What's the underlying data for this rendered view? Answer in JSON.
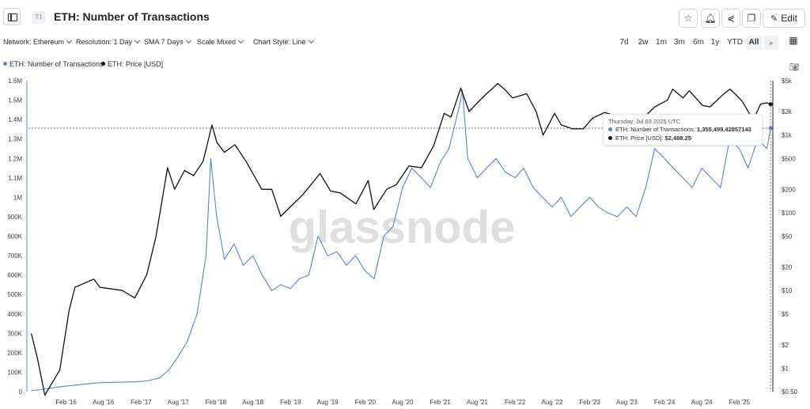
{
  "header": {
    "tier_badge": "T1",
    "title": "ETH: Number of Transactions",
    "edit_label": "Edit"
  },
  "filters": [
    {
      "label": "Network: Ethereum"
    },
    {
      "label": "Resolution: 1 Day"
    },
    {
      "label": "SMA 7 Days"
    },
    {
      "label": "Scale Mixed"
    },
    {
      "label": "Chart Style: Line"
    }
  ],
  "ranges": [
    "7d",
    "2w",
    "1m",
    "3m",
    "6m",
    "1y",
    "YTD",
    "All"
  ],
  "active_range": "All",
  "legend": [
    {
      "label": "ETH: Number of Transactions",
      "color": "#5b7fe0"
    },
    {
      "label": "ETH: Price [USD]",
      "color": "#111111"
    }
  ],
  "watermark": "glassnode",
  "tooltip": {
    "date": "Thursday, Jul 03 2025 UTC",
    "tx_label": "ETH: Number of Transactions:",
    "tx_value": "1,355,499.42857143",
    "price_label": "ETH: Price [USD]:",
    "price_value": "$2,488.25"
  },
  "chart_data": {
    "type": "line",
    "scale": {
      "left": "linear",
      "right": "log"
    },
    "grid": false,
    "legend_position": "top-left",
    "x_ticks": [
      "Feb '16",
      "Aug '16",
      "Feb '17",
      "Aug '17",
      "Feb '18",
      "Aug '18",
      "Feb '19",
      "Aug '19",
      "Feb '20",
      "Aug '20",
      "Feb '21",
      "Aug '21",
      "Feb '22",
      "Aug '22",
      "Feb '23",
      "Aug '23",
      "Feb '24",
      "Aug '24",
      "Feb '25"
    ],
    "y_left_ticks": [
      "0",
      "100K",
      "200K",
      "300K",
      "400K",
      "500K",
      "600K",
      "700K",
      "800K",
      "900K",
      "1M",
      "1.1M",
      "1.2M",
      "1.3M",
      "1.4M",
      "1.5M",
      "1.6M"
    ],
    "y_left_range": [
      0,
      1600000
    ],
    "y_right_ticks": [
      "$0.50",
      "$1",
      "$2",
      "$5",
      "$10",
      "$20",
      "$50",
      "$100",
      "$200",
      "$500",
      "$1k",
      "$2k",
      "$5k"
    ],
    "y_right_values": [
      0.5,
      1,
      2,
      5,
      10,
      20,
      50,
      100,
      200,
      500,
      1000,
      2000,
      5000
    ],
    "y_right_range": [
      0.5,
      5000
    ],
    "crosshair_value": 1355499,
    "series": [
      {
        "name": "ETH: Number of Transactions",
        "color": "#5b7fe0",
        "axis": "left",
        "dates": [
          "2015-08-15",
          "2015-10-01",
          "2016-01-01",
          "2016-04-01",
          "2016-07-01",
          "2016-10-01",
          "2017-01-01",
          "2017-03-01",
          "2017-05-01",
          "2017-06-15",
          "2017-08-01",
          "2017-09-15",
          "2017-11-01",
          "2017-12-15",
          "2018-01-07",
          "2018-02-05",
          "2018-03-15",
          "2018-05-01",
          "2018-06-15",
          "2018-08-01",
          "2018-09-15",
          "2018-11-01",
          "2018-12-15",
          "2019-02-01",
          "2019-03-15",
          "2019-05-01",
          "2019-06-15",
          "2019-08-01",
          "2019-09-15",
          "2019-11-01",
          "2019-12-15",
          "2020-02-01",
          "2020-03-15",
          "2020-05-01",
          "2020-06-15",
          "2020-08-01",
          "2020-09-15",
          "2020-11-01",
          "2020-12-15",
          "2021-02-01",
          "2021-03-15",
          "2021-05-01",
          "2021-05-20",
          "2021-06-15",
          "2021-08-01",
          "2021-09-15",
          "2021-11-01",
          "2021-12-15",
          "2022-02-01",
          "2022-03-15",
          "2022-05-01",
          "2022-06-15",
          "2022-08-01",
          "2022-09-15",
          "2022-11-01",
          "2022-12-15",
          "2023-02-01",
          "2023-03-15",
          "2023-05-01",
          "2023-06-15",
          "2023-08-01",
          "2023-09-15",
          "2023-11-01",
          "2023-12-15",
          "2024-02-01",
          "2024-03-15",
          "2024-05-01",
          "2024-06-15",
          "2024-08-01",
          "2024-09-15",
          "2024-11-01",
          "2024-12-15",
          "2025-02-01",
          "2025-03-15",
          "2025-05-01",
          "2025-06-15",
          "2025-07-03"
        ],
        "values": [
          5000,
          10000,
          25000,
          35000,
          45000,
          48000,
          50000,
          55000,
          70000,
          110000,
          180000,
          260000,
          400000,
          700000,
          1200000,
          900000,
          680000,
          760000,
          650000,
          700000,
          600000,
          520000,
          550000,
          530000,
          580000,
          600000,
          800000,
          700000,
          720000,
          650000,
          700000,
          620000,
          580000,
          800000,
          850000,
          1050000,
          1150000,
          1100000,
          1050000,
          1180000,
          1250000,
          1450000,
          1550000,
          1200000,
          1100000,
          1150000,
          1200000,
          1130000,
          1100000,
          1150000,
          1050000,
          1000000,
          950000,
          1000000,
          900000,
          950000,
          1000000,
          950000,
          920000,
          900000,
          950000,
          900000,
          1050000,
          1250000,
          1200000,
          1150000,
          1100000,
          1050000,
          1150000,
          1100000,
          1050000,
          1300000,
          1250000,
          1150000,
          1300000,
          1250000,
          1355499
        ]
      },
      {
        "name": "ETH: Price [USD]",
        "color": "#111111",
        "axis": "right",
        "dates": [
          "2015-08-15",
          "2015-09-15",
          "2015-10-20",
          "2016-01-01",
          "2016-02-15",
          "2016-03-15",
          "2016-06-15",
          "2016-07-15",
          "2016-11-01",
          "2017-01-01",
          "2017-03-01",
          "2017-04-15",
          "2017-06-10",
          "2017-07-15",
          "2017-09-01",
          "2017-10-15",
          "2017-12-01",
          "2018-01-13",
          "2018-02-06",
          "2018-03-15",
          "2018-05-05",
          "2018-06-30",
          "2018-09-13",
          "2018-11-01",
          "2018-12-15",
          "2019-02-01",
          "2019-04-01",
          "2019-06-25",
          "2019-08-15",
          "2019-10-01",
          "2019-12-17",
          "2020-02-15",
          "2020-03-13",
          "2020-05-15",
          "2020-07-01",
          "2020-09-01",
          "2020-11-01",
          "2020-12-31",
          "2021-02-20",
          "2021-03-25",
          "2021-05-12",
          "2021-06-22",
          "2021-08-01",
          "2021-09-15",
          "2021-11-09",
          "2021-12-15",
          "2022-01-20",
          "2022-03-30",
          "2022-05-15",
          "2022-06-18",
          "2022-08-13",
          "2022-09-15",
          "2022-11-09",
          "2022-12-31",
          "2023-02-15",
          "2023-04-15",
          "2023-06-15",
          "2023-08-15",
          "2023-10-15",
          "2023-12-15",
          "2024-02-15",
          "2024-03-12",
          "2024-05-01",
          "2024-06-01",
          "2024-08-05",
          "2024-09-10",
          "2024-11-12",
          "2024-12-16",
          "2025-01-15",
          "2025-02-15",
          "2025-04-09",
          "2025-05-15",
          "2025-06-15",
          "2025-07-03"
        ],
        "values": [
          2.8,
          1.3,
          0.45,
          0.95,
          5.5,
          11,
          14,
          11,
          10,
          8,
          16,
          50,
          380,
          200,
          350,
          300,
          460,
          1350,
          800,
          600,
          750,
          450,
          200,
          200,
          90,
          120,
          170,
          320,
          190,
          180,
          130,
          260,
          110,
          200,
          230,
          400,
          380,
          730,
          1900,
          1700,
          4000,
          2000,
          2600,
          3400,
          4600,
          3800,
          3000,
          3400,
          2000,
          1000,
          1900,
          1350,
          1200,
          1200,
          1650,
          1950,
          1750,
          1650,
          1600,
          2300,
          2800,
          3900,
          3000,
          3700,
          2400,
          2300,
          3300,
          3900,
          3300,
          2700,
          1550,
          2500,
          2600,
          2488
        ]
      }
    ]
  }
}
